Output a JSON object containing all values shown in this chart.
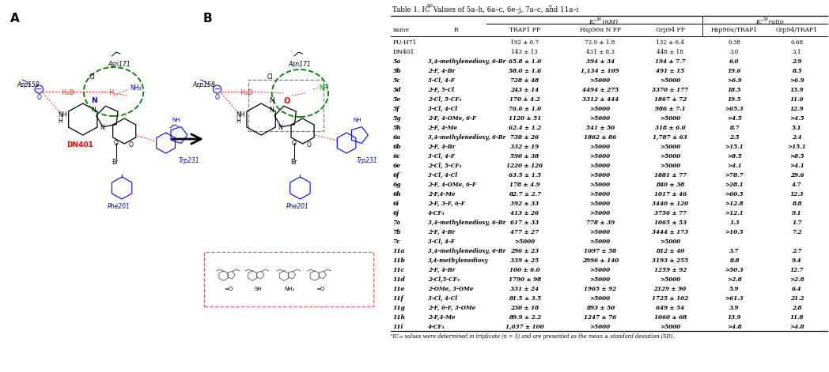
{
  "rows": [
    [
      "PU-H71",
      "",
      "192 ± 6.7",
      "72.9 ± 1.8",
      "132 ± 6.4",
      "0.38",
      "0.68"
    ],
    [
      "DN401",
      "",
      "143 ± 13",
      "431 ± 8.3",
      "448 ± 18",
      "3.0",
      "3.1"
    ],
    [
      "5a",
      "3,4-methylenedioxy, 6-Br",
      "65.8 ± 1.0",
      "394 ± 34",
      "194 ± 7.7",
      "6.0",
      "2.9"
    ],
    [
      "5b",
      "2-F, 4-Br",
      "58.0 ± 1.6",
      "1,134 ± 109",
      "491 ± 15",
      "19.6",
      "8.5"
    ],
    [
      "5c",
      "3-Cl, 4-F",
      "728 ± 48",
      ">5000",
      ">5000",
      ">6.9",
      ">6.9"
    ],
    [
      "5d",
      "2-F, 5-Cl",
      "243 ± 14",
      "4494 ± 275",
      "3370 ± 177",
      "18.5",
      "13.9"
    ],
    [
      "5e",
      "2-Cl, 5-CF₃",
      "170 ± 4.2",
      "3312 ± 444",
      "1867 ± 72",
      "19.5",
      "11.0"
    ],
    [
      "5f",
      "3-Cl, 4-Cl",
      "76.6 ± 1.0",
      ">5000",
      "986 ± 7.1",
      ">65.3",
      "12.9"
    ],
    [
      "5g",
      "2-F, 4-OMe, 6-F",
      "1120 ± 51",
      ">5000",
      ">5000",
      ">4.5",
      ">4.5"
    ],
    [
      "5h",
      "2-F, 4-Me",
      "62.4 ± 1.2",
      "541 ± 50",
      "318 ± 6.0",
      "8.7",
      "5.1"
    ],
    [
      "6a",
      "3,4-methylenedioxy, 6-Br",
      "738 ± 26",
      "1862 ± 86",
      "1,787 ± 63",
      "2.5",
      "2.4"
    ],
    [
      "6b",
      "2-F, 4-Br",
      "332 ± 19",
      ">5000",
      ">5000",
      ">15.1",
      ">15.1"
    ],
    [
      "6c",
      "3-Cl, 4-F",
      "590 ± 38",
      ">5000",
      ">5000",
      ">8.5",
      ">8.5"
    ],
    [
      "6e",
      "2-Cl, 5-CF₃",
      "1220 ± 126",
      ">5000",
      ">5000",
      ">4.1",
      ">4.1"
    ],
    [
      "6f",
      "3-Cl, 4-Cl",
      "63.5 ± 1.5",
      ">5000",
      "1881 ± 77",
      ">78.7",
      "29.6"
    ],
    [
      "6g",
      "2-F, 4-OMe, 6-F",
      "178 ± 4.9",
      ">5000",
      "840 ± 38",
      ">28.1",
      "4.7"
    ],
    [
      "6h",
      "2-F,4-Me",
      "82.7 ± 2.7",
      ">5000",
      "1017 ± 46",
      ">60.5",
      "12.3"
    ],
    [
      "6i",
      "2-F, 3-F, 6-F",
      "392 ± 33",
      ">5000",
      "3440 ± 120",
      ">12.8",
      "8.8"
    ],
    [
      "6j",
      "4-CF₃",
      "413 ± 26",
      ">5000",
      "3756 ± 77",
      ">12.1",
      "9.1"
    ],
    [
      "7a",
      "3,4-methylenedioxy, 6-Br",
      "617 ± 33",
      "778 ± 39",
      "1065 ± 53",
      "1.3",
      "1.7"
    ],
    [
      "7b",
      "2-F, 4-Br",
      "477 ± 27",
      ">5000",
      "3444 ± 173",
      ">10.5",
      "7.2"
    ],
    [
      "7c",
      "3-Cl, 4-F",
      ">5000",
      ">5000",
      ">5000",
      "",
      ""
    ],
    [
      "11a",
      "3,4-methylenedioxy, 6-Br",
      "296 ± 23",
      "1097 ± 58",
      "812 ± 40",
      "3.7",
      "2.7"
    ],
    [
      "11b",
      "3,4-methylenedioxy",
      "339 ± 25",
      "2996 ± 140",
      "3193 ± 255",
      "8.8",
      "9.4"
    ],
    [
      "11c",
      "2-F, 4-Br",
      "100 ± 6.0",
      ">5000",
      "1259 ± 92",
      ">50.3",
      "12.7"
    ],
    [
      "11d",
      "2-Cl,5-CF₃",
      "1790 ± 98",
      ">5000",
      ">5000",
      ">2.8",
      ">2.8"
    ],
    [
      "11e",
      "2-OMe, 3-OMe",
      "331 ± 24",
      "1965 ± 92",
      "2129 ± 90",
      "5.9",
      "6.4"
    ],
    [
      "11f",
      "3-Cl, 4-Cl",
      "81.5 ± 3.5",
      ">5000",
      "1725 ± 102",
      ">61.3",
      "21.2"
    ],
    [
      "11g",
      "2-F, 6-F, 3-OMe",
      "230 ± 18",
      "893 ± 50",
      "649 ± 54",
      "3.9",
      "2.8"
    ],
    [
      "11h",
      "2-F,4-Me",
      "89.9 ± 2.2",
      "1247 ± 76",
      "1060 ± 68",
      "13.9",
      "11.8"
    ],
    [
      "11i",
      "4-CF₃",
      "1,037 ± 100",
      ">5000",
      ">5000",
      ">4.8",
      ">4.8"
    ]
  ],
  "footnote": "ᵃIC₅₀ values were determined in triplicate (n = 3) and are presented as the mean ± standard deviation (SD).",
  "bg_color": "#ffffff"
}
